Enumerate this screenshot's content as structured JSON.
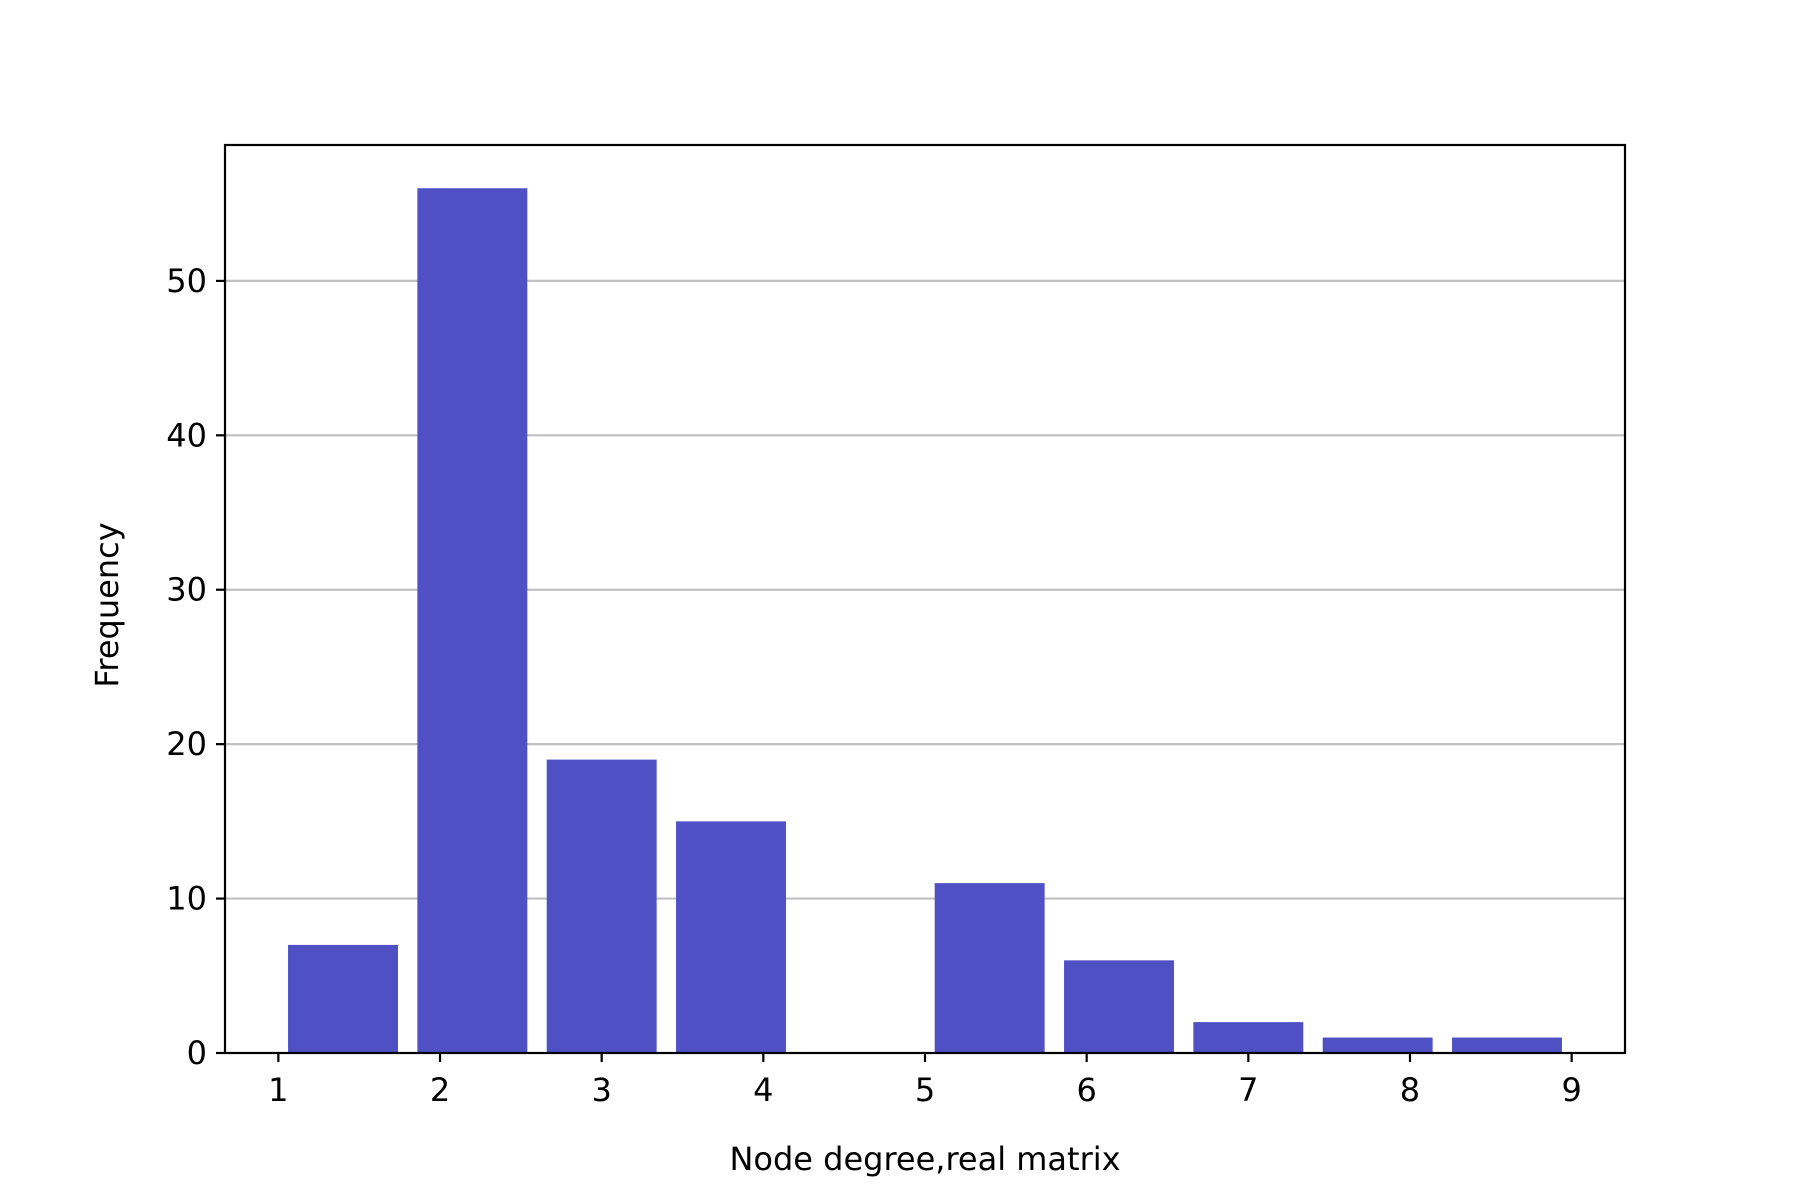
{
  "chart_data": {
    "type": "bar",
    "title": "",
    "xlabel": "Node degree,real matrix",
    "ylabel": "Frequency",
    "bins": [
      {
        "start": 1.0,
        "end": 1.8,
        "value": 7
      },
      {
        "start": 1.8,
        "end": 2.6,
        "value": 56
      },
      {
        "start": 2.6,
        "end": 3.4,
        "value": 19
      },
      {
        "start": 3.4,
        "end": 4.2,
        "value": 15
      },
      {
        "start": 4.2,
        "end": 5.0,
        "value": 0
      },
      {
        "start": 5.0,
        "end": 5.8,
        "value": 11
      },
      {
        "start": 5.8,
        "end": 6.6,
        "value": 6
      },
      {
        "start": 6.6,
        "end": 7.4,
        "value": 2
      },
      {
        "start": 7.4,
        "end": 8.2,
        "value": 1
      },
      {
        "start": 8.2,
        "end": 9.0,
        "value": 1
      }
    ],
    "xlim": [
      0.67,
      9.33
    ],
    "ylim": [
      0,
      58.8
    ],
    "xticks": [
      1,
      2,
      3,
      4,
      5,
      6,
      7,
      8,
      9
    ],
    "yticks": [
      0,
      10,
      20,
      30,
      40,
      50
    ],
    "grid": "y",
    "legend": "none",
    "bar_color": "#4f50c4",
    "grid_color": "#c0c0c0"
  }
}
